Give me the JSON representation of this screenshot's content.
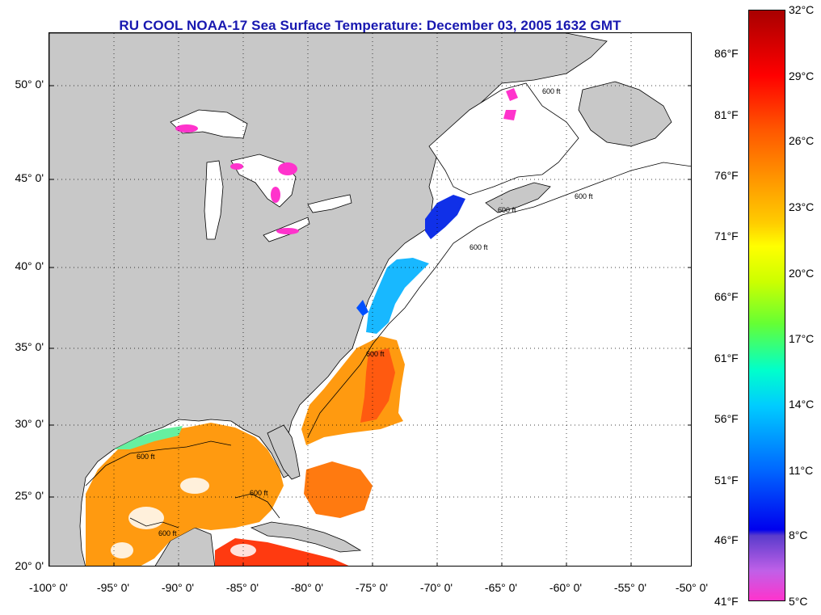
{
  "title": "RU COOL  NOAA-17  Sea Surface Temperature:  December 03, 2005 1632 GMT",
  "map": {
    "lat_labels": [
      "50° 0'",
      "45° 0'",
      "40° 0'",
      "35° 0'",
      "30° 0'",
      "25° 0'",
      "20° 0'"
    ],
    "lon_labels": [
      "-100° 0'",
      "-95° 0'",
      "-90° 0'",
      "-85° 0'",
      "-80° 0'",
      "-75° 0'",
      "-70° 0'",
      "-65° 0'",
      "-60° 0'",
      "-55° 0'",
      "-50° 0'"
    ],
    "contour_labels": [
      "600 ft",
      "600 ft",
      "600 ft",
      "600 ft",
      "600 ft",
      "600 ft",
      "600 ft",
      "600 ft"
    ],
    "colors": {
      "land": "#c8c8c8",
      "ocean_nodata": "#ffffff",
      "grid": "#000000"
    }
  },
  "colorbar": {
    "fahrenheit": [
      "86°F",
      "81°F",
      "76°F",
      "71°F",
      "66°F",
      "61°F",
      "56°F",
      "51°F",
      "46°F",
      "41°F"
    ],
    "celsius": [
      "32°C",
      "29°C",
      "26°C",
      "23°C",
      "20°C",
      "17°C",
      "14°C",
      "11°C",
      "8°C",
      "5°C"
    ]
  }
}
